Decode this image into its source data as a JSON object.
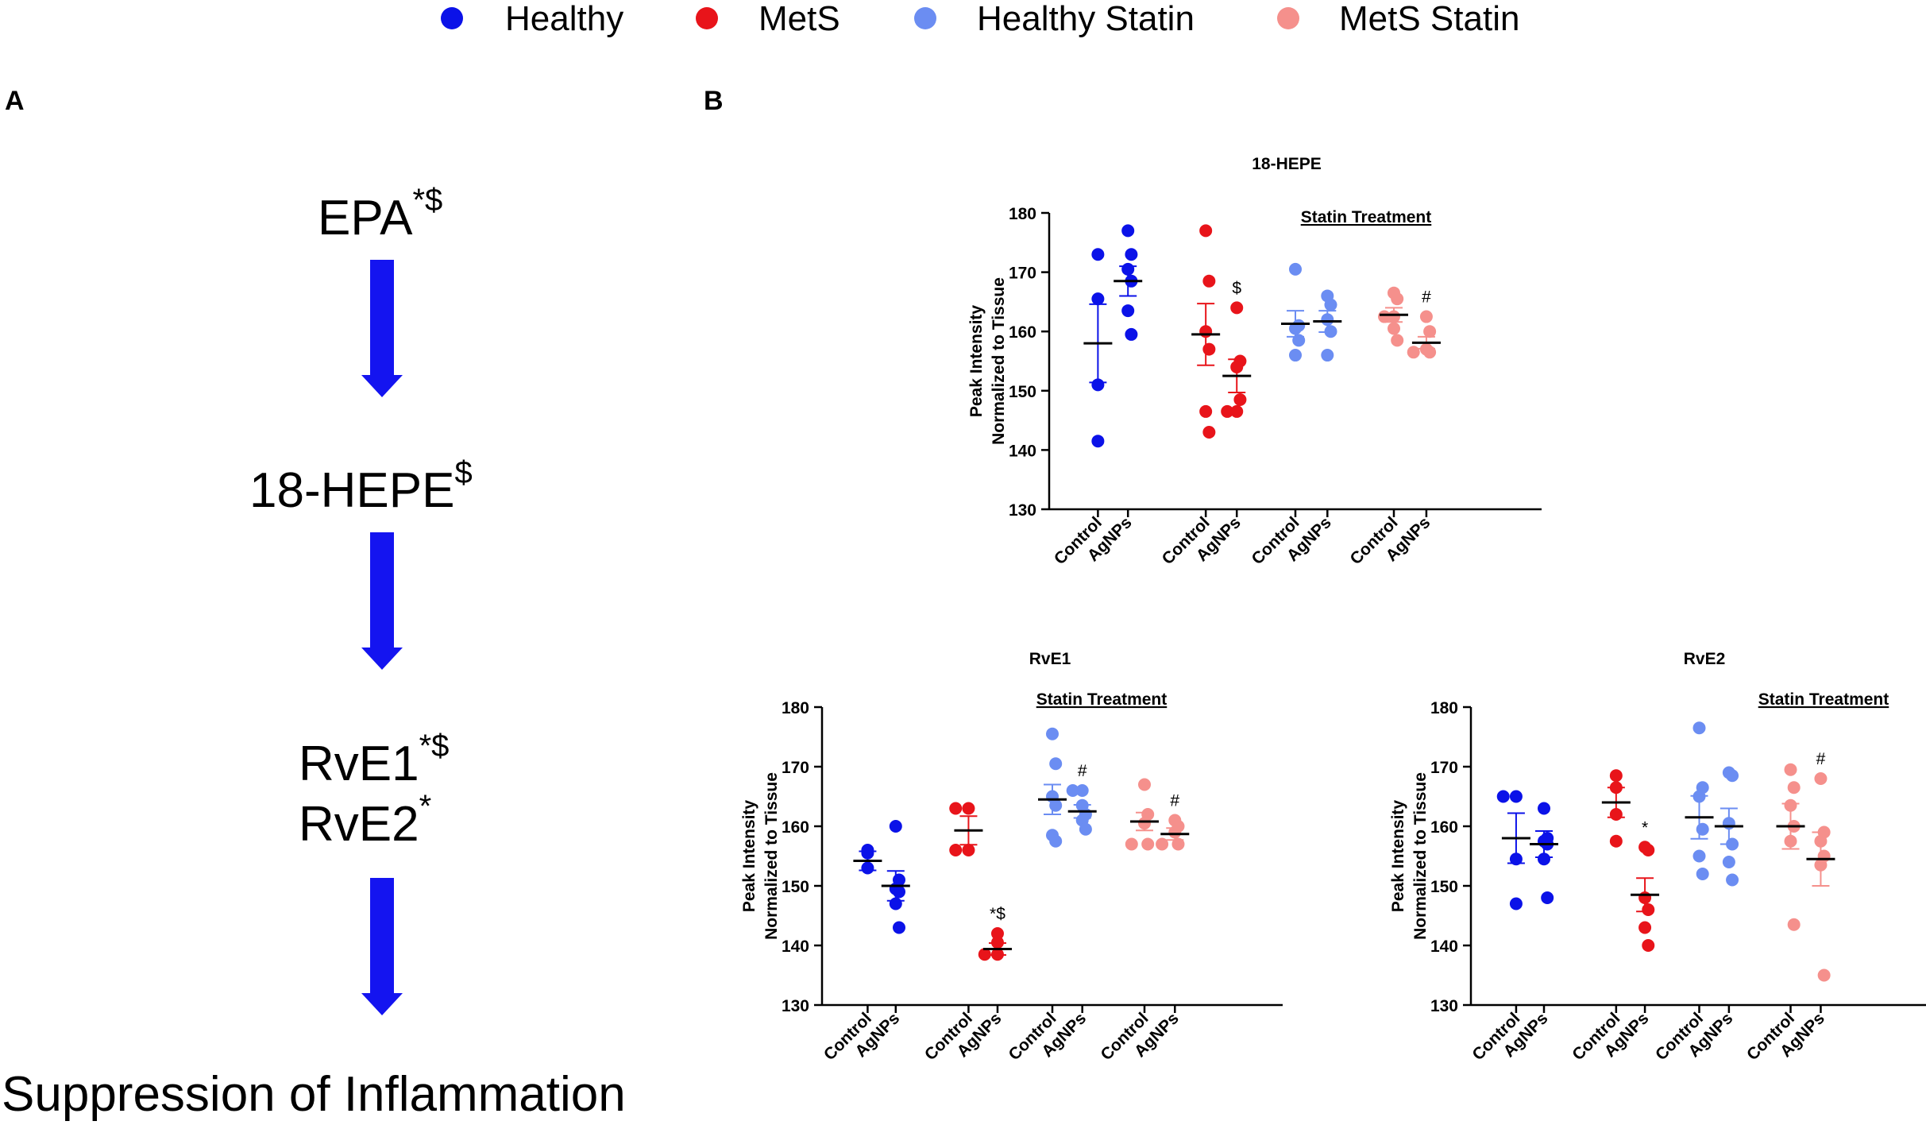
{
  "legend": [
    {
      "label": "Healthy",
      "color": "#0b12e8"
    },
    {
      "label": "MetS",
      "color": "#e8141a"
    },
    {
      "label": "Healthy Statin",
      "color": "#6b8df2"
    },
    {
      "label": "MetS Statin",
      "color": "#f5908c"
    }
  ],
  "panel_a": {
    "letter": "A",
    "steps": [
      {
        "name": "EPA",
        "sup": "*$"
      },
      {
        "name": "18-HEPE",
        "sup": "$"
      },
      {
        "name": "RvE1",
        "sup": "*$"
      },
      {
        "name": "RvE2",
        "sup": "*"
      },
      {
        "name": "Suppression of Inflammation",
        "sup": ""
      }
    ],
    "arrow_color": "#1414f0"
  },
  "panel_b": {
    "letter": "B"
  },
  "chart_data": [
    {
      "type": "scatter",
      "title": "18-HEPE",
      "ylabel_line1": "Peak Intensity",
      "ylabel_line2": "Normalized to Tissue",
      "ylim": [
        130,
        180
      ],
      "yticks": [
        130,
        140,
        150,
        160,
        170,
        180
      ],
      "statin_label": "Statin Treatment",
      "groups": [
        {
          "group": "Healthy",
          "category": "Control",
          "color": "#0b12e8",
          "points": [
            173,
            165.5,
            151,
            141.5
          ],
          "mean": 158,
          "sem": 6.6,
          "annotation": ""
        },
        {
          "group": "Healthy",
          "category": "AgNPs",
          "color": "#0b12e8",
          "points": [
            177,
            173,
            170.5,
            168.5,
            163.5,
            159.5
          ],
          "mean": 168.5,
          "sem": 2.5,
          "annotation": ""
        },
        {
          "group": "MetS",
          "category": "Control",
          "color": "#e8141a",
          "points": [
            177,
            168.5,
            160,
            157,
            146.5,
            143
          ],
          "mean": 159.5,
          "sem": 5.2,
          "annotation": ""
        },
        {
          "group": "MetS",
          "category": "AgNPs",
          "color": "#e8141a",
          "points": [
            164,
            155,
            154,
            148.5,
            146.5,
            146.5
          ],
          "mean": 152.5,
          "sem": 2.8,
          "annotation": "$"
        },
        {
          "group": "Healthy Statin",
          "category": "Control",
          "color": "#6b8df2",
          "points": [
            170.5,
            161,
            160.5,
            158.5,
            156
          ],
          "mean": 161.3,
          "sem": 2.2,
          "annotation": ""
        },
        {
          "group": "Healthy Statin",
          "category": "AgNPs",
          "color": "#6b8df2",
          "points": [
            166,
            164.5,
            162,
            160,
            156
          ],
          "mean": 161.7,
          "sem": 1.8,
          "annotation": ""
        },
        {
          "group": "MetS Statin",
          "category": "Control",
          "color": "#f5908c",
          "points": [
            166.5,
            165.5,
            162.5,
            162.5,
            160.5,
            158.5
          ],
          "mean": 162.8,
          "sem": 1.2,
          "annotation": ""
        },
        {
          "group": "MetS Statin",
          "category": "AgNPs",
          "color": "#f5908c",
          "points": [
            162.5,
            160,
            157,
            156.5,
            156.5
          ],
          "mean": 158.1,
          "sem": 1.0,
          "annotation": "#"
        }
      ]
    },
    {
      "type": "scatter",
      "title": "RvE1",
      "ylabel_line1": "Peak Intensity",
      "ylabel_line2": "Normalized to Tissue",
      "ylim": [
        130,
        180
      ],
      "yticks": [
        130,
        140,
        150,
        160,
        170,
        180
      ],
      "statin_label": "Statin Treatment",
      "groups": [
        {
          "group": "Healthy",
          "category": "Control",
          "color": "#0b12e8",
          "points": [
            156,
            155.5,
            153
          ],
          "mean": 154.2,
          "sem": 1.6,
          "annotation": ""
        },
        {
          "group": "Healthy",
          "category": "AgNPs",
          "color": "#0b12e8",
          "points": [
            160,
            151,
            149.5,
            149,
            147,
            143
          ],
          "mean": 150,
          "sem": 2.5,
          "annotation": ""
        },
        {
          "group": "MetS",
          "category": "Control",
          "color": "#e8141a",
          "points": [
            163,
            163,
            156,
            156
          ],
          "mean": 159.3,
          "sem": 2.4,
          "annotation": ""
        },
        {
          "group": "MetS",
          "category": "AgNPs",
          "color": "#e8141a",
          "points": [
            142,
            140.5,
            138.5,
            138.5
          ],
          "mean": 139.4,
          "sem": 1.0,
          "annotation": "*$"
        },
        {
          "group": "Healthy Statin",
          "category": "Control",
          "color": "#6b8df2",
          "points": [
            175.5,
            170.5,
            165,
            163.5,
            158.5,
            157.5
          ],
          "mean": 164.5,
          "sem": 2.5,
          "annotation": ""
        },
        {
          "group": "Healthy Statin",
          "category": "AgNPs",
          "color": "#6b8df2",
          "points": [
            166,
            166,
            163.5,
            162,
            161,
            159.5
          ],
          "mean": 162.5,
          "sem": 1.1,
          "annotation": "#"
        },
        {
          "group": "MetS Statin",
          "category": "Control",
          "color": "#f5908c",
          "points": [
            167,
            162,
            160.5,
            157,
            157
          ],
          "mean": 160.8,
          "sem": 1.5,
          "annotation": ""
        },
        {
          "group": "MetS Statin",
          "category": "AgNPs",
          "color": "#f5908c",
          "points": [
            161,
            160,
            159,
            157,
            157
          ],
          "mean": 158.7,
          "sem": 1.0,
          "annotation": "#"
        }
      ]
    },
    {
      "type": "scatter",
      "title": "RvE2",
      "ylabel_line1": "Peak Intensity",
      "ylabel_line2": "Normalized to Tissue",
      "ylim": [
        130,
        180
      ],
      "yticks": [
        130,
        140,
        150,
        160,
        170,
        180
      ],
      "statin_label": "Statin Treatment",
      "groups": [
        {
          "group": "Healthy",
          "category": "Control",
          "color": "#0b12e8",
          "points": [
            165,
            165,
            154.5,
            147
          ],
          "mean": 158,
          "sem": 4.2,
          "annotation": ""
        },
        {
          "group": "Healthy",
          "category": "AgNPs",
          "color": "#0b12e8",
          "points": [
            163,
            158,
            157.5,
            157,
            154.5,
            148
          ],
          "mean": 157,
          "sem": 2.2,
          "annotation": ""
        },
        {
          "group": "MetS",
          "category": "Control",
          "color": "#e8141a",
          "points": [
            168.5,
            166.5,
            162,
            157.5
          ],
          "mean": 164,
          "sem": 2.5,
          "annotation": ""
        },
        {
          "group": "MetS",
          "category": "AgNPs",
          "color": "#e8141a",
          "points": [
            156.5,
            156,
            148,
            146,
            143,
            140
          ],
          "mean": 148.5,
          "sem": 2.8,
          "annotation": "*"
        },
        {
          "group": "Healthy Statin",
          "category": "Control",
          "color": "#6b8df2",
          "points": [
            176.5,
            166.5,
            165,
            159.5,
            155,
            152
          ],
          "mean": 161.5,
          "sem": 3.6,
          "annotation": ""
        },
        {
          "group": "Healthy Statin",
          "category": "AgNPs",
          "color": "#6b8df2",
          "points": [
            169,
            168.5,
            160.5,
            157,
            154,
            151
          ],
          "mean": 160,
          "sem": 3,
          "annotation": ""
        },
        {
          "group": "MetS Statin",
          "category": "Control",
          "color": "#f5908c",
          "points": [
            169.5,
            166.5,
            163.5,
            160,
            157.5,
            143.5
          ],
          "mean": 160,
          "sem": 3.8,
          "annotation": ""
        },
        {
          "group": "MetS Statin",
          "category": "AgNPs",
          "color": "#f5908c",
          "points": [
            168,
            159,
            157.5,
            155,
            153.5,
            135
          ],
          "mean": 154.5,
          "sem": 4.5,
          "annotation": "#"
        }
      ]
    }
  ]
}
